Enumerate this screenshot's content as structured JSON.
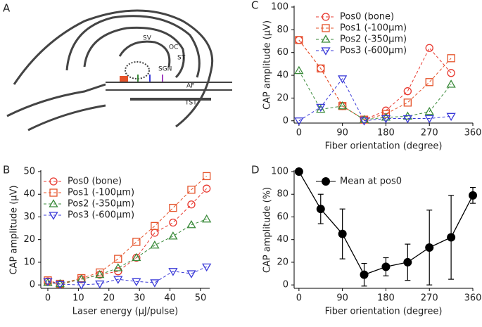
{
  "panel_a": {
    "label": "A",
    "labels": [
      "SV",
      "OC",
      "ST",
      "SGN",
      "AF",
      "TST"
    ]
  },
  "chart_data": [
    {
      "type": "line",
      "label": "B",
      "xlabel": "Laser energy (μJ/pulse)",
      "ylabel": "CAP amplitude (μV)",
      "x": [
        0,
        4,
        11,
        17,
        23,
        29,
        35,
        41,
        47,
        52
      ],
      "xlim": [
        -2.3,
        53
      ],
      "xticks": [
        0,
        10,
        20,
        30,
        40,
        50
      ],
      "ylim": [
        -1.5,
        50
      ],
      "yticks": [
        0,
        10,
        20,
        30,
        40,
        50
      ],
      "legend": "upper left",
      "series": [
        {
          "name": "Pos0 (bone)",
          "color": "#e8382f",
          "marker": "circle",
          "dashed": true,
          "values": [
            1.5,
            0.3,
            2.5,
            4.5,
            6,
            12,
            23,
            27.5,
            35.5,
            42.5
          ]
        },
        {
          "name": "Pos1 (-100µm)",
          "color": "#e5532a",
          "marker": "square",
          "dashed": true,
          "values": [
            2,
            0.5,
            3,
            5.5,
            11.5,
            19,
            26,
            34,
            42,
            48
          ]
        },
        {
          "name": "Pos2 (-350µm)",
          "color": "#3a8a3a",
          "marker": "triangle",
          "dashed": true,
          "values": [
            1,
            0.5,
            2.5,
            4.5,
            7.5,
            12,
            17.5,
            21.5,
            26.5,
            29
          ]
        },
        {
          "name": "Pos3 (-600µm)",
          "color": "#3a3ad8",
          "marker": "triangle-down",
          "dashed": true,
          "values": [
            1.5,
            0.3,
            0,
            0.5,
            2.5,
            1.5,
            1,
            6,
            5,
            8
          ]
        }
      ]
    },
    {
      "type": "line",
      "label": "C",
      "xlabel": "Fiber orientation (degree)",
      "ylabel": "CAP amplitude (μV)",
      "x": [
        0,
        45,
        90,
        135,
        180,
        225,
        270,
        315
      ],
      "xlim": [
        -10,
        360
      ],
      "xticks": [
        0,
        90,
        180,
        270,
        360
      ],
      "ylim": [
        -2,
        100
      ],
      "yticks": [
        0,
        20,
        40,
        60,
        80,
        100
      ],
      "legend": "upper center",
      "series": [
        {
          "name": "Pos0 (bone)",
          "color": "#e8382f",
          "marker": "circle",
          "dashed": true,
          "values": [
            71,
            46,
            13,
            1,
            9,
            26,
            64,
            42
          ]
        },
        {
          "name": "Pos1 (-100µm)",
          "color": "#e5532a",
          "marker": "square",
          "dashed": true,
          "values": [
            71,
            46,
            13,
            1,
            6,
            16,
            34,
            55
          ]
        },
        {
          "name": "Pos2 (-350µm)",
          "color": "#3a8a3a",
          "marker": "triangle",
          "dashed": true,
          "values": [
            44,
            10,
            13,
            1,
            3,
            4,
            8,
            32
          ]
        },
        {
          "name": "Pos3 (-600µm)",
          "color": "#3a3ad8",
          "marker": "triangle-down",
          "dashed": true,
          "values": [
            0,
            12,
            37,
            0,
            2,
            2,
            2,
            4
          ]
        }
      ]
    },
    {
      "type": "errorbar",
      "label": "D",
      "xlabel": "Fiber orientation (degree)",
      "ylabel": "CAP amplitude (%)",
      "x": [
        0,
        45,
        90,
        135,
        180,
        225,
        270,
        315,
        360
      ],
      "xlim": [
        -10,
        360
      ],
      "xticks": [
        0,
        90,
        180,
        270,
        360
      ],
      "ylim": [
        -3,
        100
      ],
      "yticks": [
        0,
        20,
        40,
        60,
        80,
        100
      ],
      "legend": "upper center",
      "series": [
        {
          "name": "Mean at pos0",
          "color": "#000000",
          "marker": "filled-circle",
          "dashed": false,
          "values": [
            100,
            67,
            45,
            9,
            16,
            20,
            33,
            42,
            79
          ],
          "errors": [
            0,
            13,
            22,
            10,
            8,
            16,
            33,
            37,
            7
          ]
        }
      ]
    }
  ]
}
